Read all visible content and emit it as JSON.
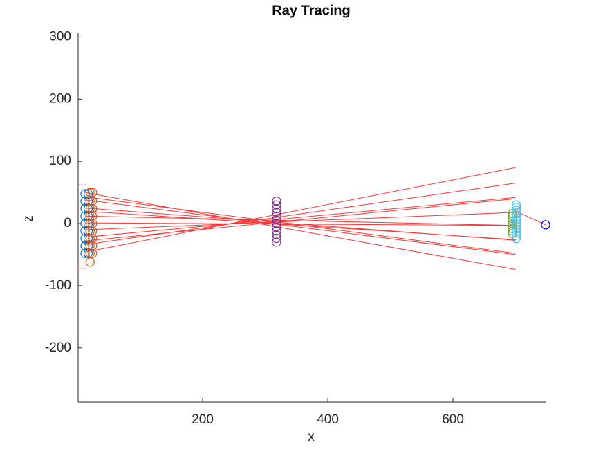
{
  "chart_data": {
    "type": "line",
    "title": "Ray Tracing",
    "x_label": "x",
    "y_label": "z",
    "xlim": [
      1,
      748
    ],
    "ylim": [
      -287,
      306
    ],
    "xticks": [
      200,
      400,
      600
    ],
    "yticks": [
      -200,
      -100,
      0,
      100,
      200,
      300
    ],
    "series": [
      {
        "mode": "lines",
        "color": "#ff0000",
        "x": [
          12,
          700,
          null,
          12,
          700,
          null,
          12,
          700,
          null,
          12,
          700,
          null,
          12,
          700,
          null,
          12,
          700,
          null,
          12,
          700,
          null,
          12,
          700,
          null,
          12,
          700,
          null,
          12,
          700,
          null,
          12,
          700,
          null,
          12,
          700,
          null,
          2,
          14,
          null,
          2,
          14
        ],
        "values": [
          -46,
          90,
          null,
          50,
          -74,
          null,
          -34,
          65,
          null,
          38,
          -50,
          null,
          -22,
          42,
          null,
          25,
          -27,
          null,
          -10,
          18,
          null,
          12,
          -3,
          null,
          1,
          -3,
          null,
          20,
          -26,
          null,
          -28,
          40,
          null,
          43,
          -48,
          null,
          62,
          62,
          null,
          -72,
          -72
        ]
      },
      {
        "mode": "lines",
        "color": "#ff0000",
        "x": [
          700,
          748
        ],
        "values": [
          20,
          -2
        ]
      },
      {
        "mode": "markers",
        "color": "#0072bd",
        "x": [
          12,
          12,
          12,
          12,
          12,
          12,
          12,
          12,
          12,
          17,
          17,
          17,
          17,
          17,
          17,
          17,
          17,
          17
        ],
        "values": [
          -48,
          -36,
          -24,
          -12,
          0,
          12,
          24,
          36,
          48,
          -48,
          -36,
          -24,
          -12,
          0,
          12,
          24,
          36,
          48
        ]
      },
      {
        "mode": "markers",
        "color": "#d95319",
        "x": [
          20,
          20,
          20,
          20,
          20,
          20,
          20,
          20,
          20,
          20,
          24,
          24,
          24,
          24,
          24,
          24,
          24,
          24,
          24
        ],
        "values": [
          -62,
          -48,
          -36,
          -24,
          -12,
          0,
          12,
          24,
          36,
          50,
          -48,
          -36,
          -24,
          -12,
          0,
          12,
          24,
          36,
          50
        ]
      },
      {
        "mode": "markers",
        "color": "#7e2f8e",
        "x": [
          318,
          318,
          318,
          318,
          318,
          318,
          318,
          318,
          318,
          318,
          318,
          318
        ],
        "values": [
          -30,
          -24,
          -18,
          -12,
          -6,
          0,
          6,
          12,
          18,
          24,
          30,
          36
        ]
      },
      {
        "mode": "markers",
        "color": "#77ac30",
        "x": [
          695,
          695,
          695,
          695,
          695,
          695,
          695,
          695,
          695
        ],
        "values": [
          -16,
          -12,
          -8,
          -4,
          0,
          4,
          8,
          12,
          16
        ]
      },
      {
        "mode": "markers",
        "color": "#4dbeee",
        "x": [
          701,
          701,
          701,
          701,
          701,
          701,
          701,
          701,
          701,
          701,
          701,
          701
        ],
        "values": [
          -24,
          -19,
          -14,
          -9,
          -4,
          1,
          6,
          11,
          16,
          21,
          26,
          30
        ]
      },
      {
        "mode": "markers",
        "color": "#0000ff",
        "x": [
          748
        ],
        "values": [
          -2
        ]
      }
    ]
  }
}
